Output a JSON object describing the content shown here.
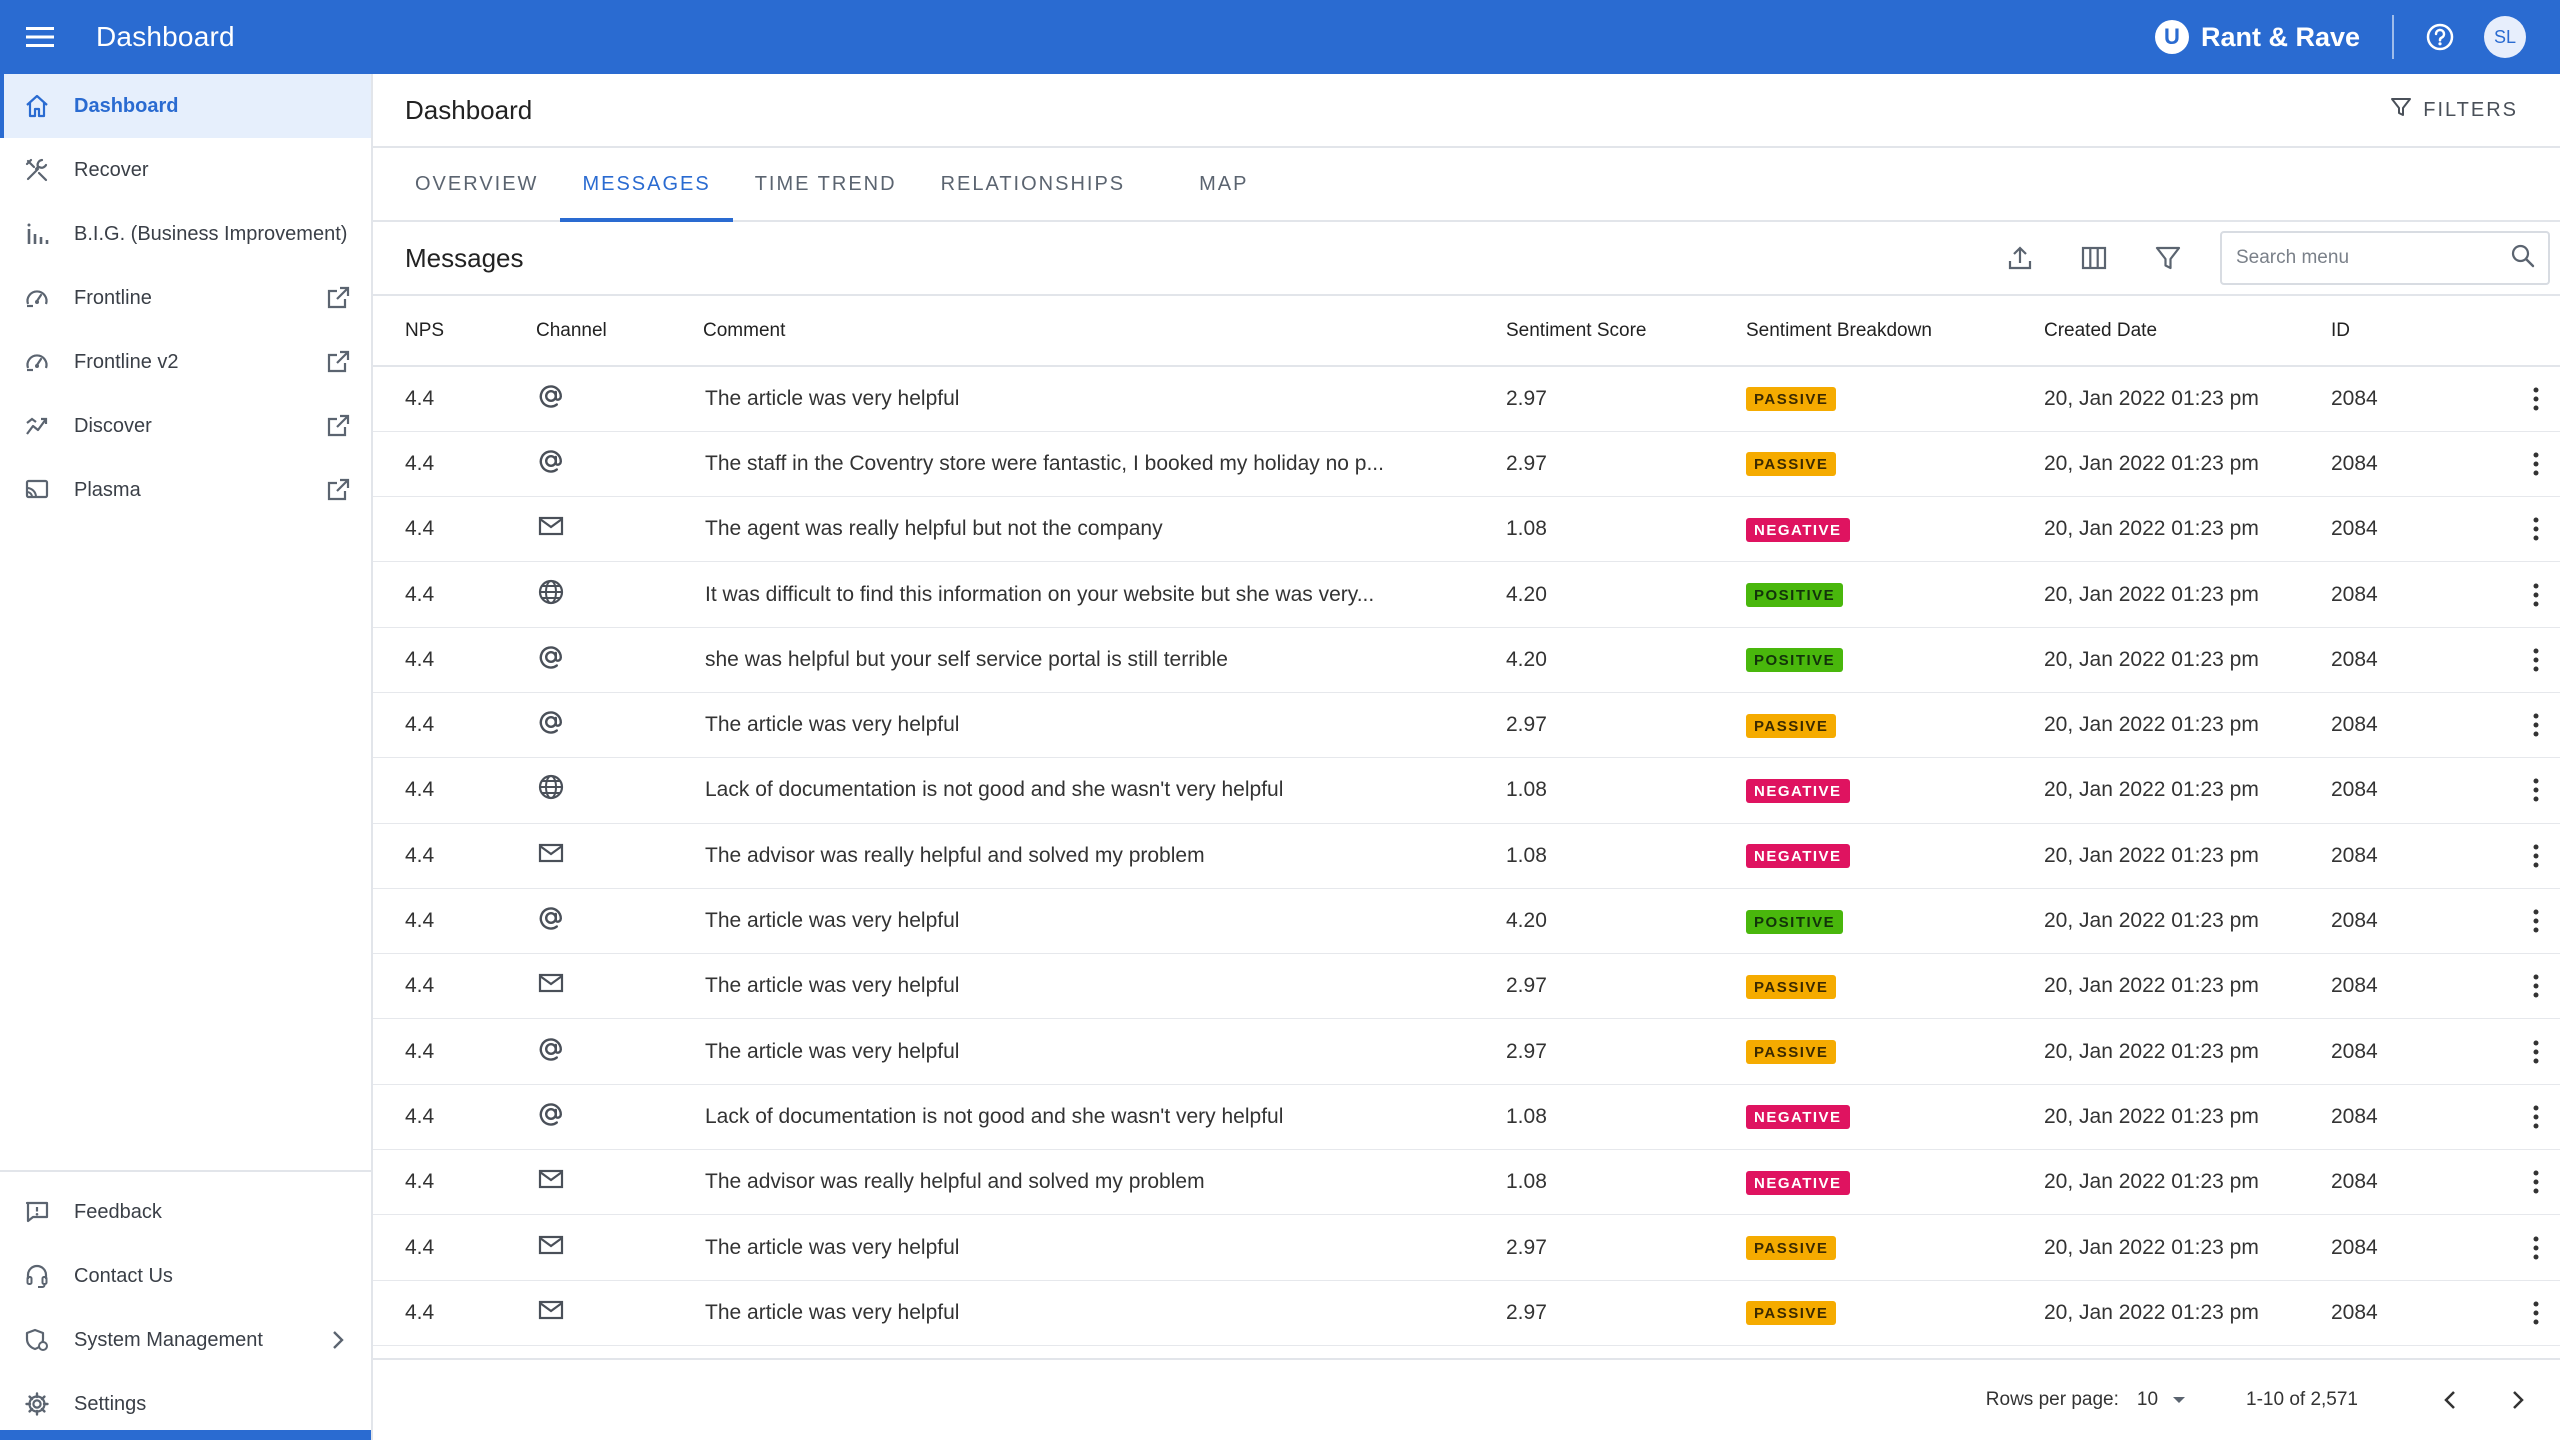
{
  "app": {
    "title": "Dashboard",
    "brand": "Rant & Rave",
    "brand_logo_letter": "U",
    "user_initials": "SL"
  },
  "colors": {
    "accent": "#2a6bd1",
    "passive": "#f5ab00",
    "negative": "#df1360",
    "positive": "#49b70c"
  },
  "sidebar": {
    "items": [
      {
        "label": "Dashboard",
        "icon": "home-icon",
        "active": true
      },
      {
        "label": "Recover",
        "icon": "tools-icon"
      },
      {
        "label": "B.I.G. (Business Improvement)",
        "icon": "bar-chart-icon"
      },
      {
        "label": "Frontline",
        "icon": "gauge-icon",
        "external": true
      },
      {
        "label": "Frontline v2",
        "icon": "gauge-icon",
        "external": true
      },
      {
        "label": "Discover",
        "icon": "trend-icon",
        "external": true
      },
      {
        "label": "Plasma",
        "icon": "cast-icon",
        "external": true
      }
    ],
    "bottom_items": [
      {
        "label": "Feedback",
        "icon": "feedback-icon"
      },
      {
        "label": "Contact Us",
        "icon": "headset-icon"
      },
      {
        "label": "System Management",
        "icon": "settings-shield-icon",
        "has_submenu": true
      },
      {
        "label": "Settings",
        "icon": "gear-icon"
      }
    ]
  },
  "page": {
    "title": "Dashboard",
    "filters_label": "FILTERS"
  },
  "tabs": [
    {
      "label": "OVERVIEW"
    },
    {
      "label": "MESSAGES",
      "active": true
    },
    {
      "label": "TIME TREND"
    },
    {
      "label": "RELATIONSHIPS"
    },
    {
      "label": "MAP"
    }
  ],
  "messages": {
    "title": "Messages",
    "search_placeholder": "Search menu",
    "columns": [
      "NPS",
      "Channel",
      "Comment",
      "Sentiment Score",
      "Sentiment Breakdown",
      "Created Date",
      "ID"
    ],
    "rows": [
      {
        "nps": "4.4",
        "channel": "email-at-icon",
        "comment": "The article was very helpful",
        "score": "2.97",
        "sentiment": "PASSIVE",
        "date": "20, Jan 2022 01:23 pm",
        "id": "2084"
      },
      {
        "nps": "4.4",
        "channel": "email-at-icon",
        "comment": "The staff in the Coventry store were fantastic, I booked my holiday no p...",
        "score": "2.97",
        "sentiment": "PASSIVE",
        "date": "20, Jan 2022 01:23 pm",
        "id": "2084"
      },
      {
        "nps": "4.4",
        "channel": "envelope-icon",
        "comment": "The agent was really helpful but not the company",
        "score": "1.08",
        "sentiment": "NEGATIVE",
        "date": "20, Jan 2022 01:23 pm",
        "id": "2084"
      },
      {
        "nps": "4.4",
        "channel": "globe-icon",
        "comment": "It was difficult to find this information on your website but she was very...",
        "score": "4.20",
        "sentiment": "POSITIVE",
        "date": "20, Jan 2022 01:23 pm",
        "id": "2084"
      },
      {
        "nps": "4.4",
        "channel": "email-at-icon",
        "comment": "she was helpful but your self service portal is still terrible",
        "score": "4.20",
        "sentiment": "POSITIVE",
        "date": "20, Jan 2022 01:23 pm",
        "id": "2084"
      },
      {
        "nps": "4.4",
        "channel": "email-at-icon",
        "comment": "The article was very helpful",
        "score": "2.97",
        "sentiment": "PASSIVE",
        "date": "20, Jan 2022 01:23 pm",
        "id": "2084"
      },
      {
        "nps": "4.4",
        "channel": "globe-icon",
        "comment": "Lack of documentation is not good and she wasn't very helpful",
        "score": "1.08",
        "sentiment": "NEGATIVE",
        "date": "20, Jan 2022 01:23 pm",
        "id": "2084"
      },
      {
        "nps": "4.4",
        "channel": "envelope-icon",
        "comment": "The advisor was really helpful and solved my problem",
        "score": "1.08",
        "sentiment": "NEGATIVE",
        "date": "20, Jan 2022 01:23 pm",
        "id": "2084"
      },
      {
        "nps": "4.4",
        "channel": "email-at-icon",
        "comment": "The article was very helpful",
        "score": "4.20",
        "sentiment": "POSITIVE",
        "date": "20, Jan 2022 01:23 pm",
        "id": "2084"
      },
      {
        "nps": "4.4",
        "channel": "envelope-icon",
        "comment": "The article was very helpful",
        "score": "2.97",
        "sentiment": "PASSIVE",
        "date": "20, Jan 2022 01:23 pm",
        "id": "2084"
      },
      {
        "nps": "4.4",
        "channel": "email-at-icon",
        "comment": "The article was very helpful",
        "score": "2.97",
        "sentiment": "PASSIVE",
        "date": "20, Jan 2022 01:23 pm",
        "id": "2084"
      },
      {
        "nps": "4.4",
        "channel": "email-at-icon",
        "comment": "Lack of documentation is not good and she wasn't very helpful",
        "score": "1.08",
        "sentiment": "NEGATIVE",
        "date": "20, Jan 2022 01:23 pm",
        "id": "2084"
      },
      {
        "nps": "4.4",
        "channel": "envelope-icon",
        "comment": "The advisor was really helpful and solved my problem",
        "score": "1.08",
        "sentiment": "NEGATIVE",
        "date": "20, Jan 2022 01:23 pm",
        "id": "2084"
      },
      {
        "nps": "4.4",
        "channel": "envelope-icon",
        "comment": "The article was very helpful",
        "score": "2.97",
        "sentiment": "PASSIVE",
        "date": "20, Jan 2022 01:23 pm",
        "id": "2084"
      },
      {
        "nps": "4.4",
        "channel": "envelope-icon",
        "comment": "The article was very helpful",
        "score": "2.97",
        "sentiment": "PASSIVE",
        "date": "20, Jan 2022 01:23 pm",
        "id": "2084"
      }
    ],
    "pagination": {
      "rows_per_page_label": "Rows per page:",
      "rows_per_page": "10",
      "range": "1-10 of 2,571"
    }
  }
}
